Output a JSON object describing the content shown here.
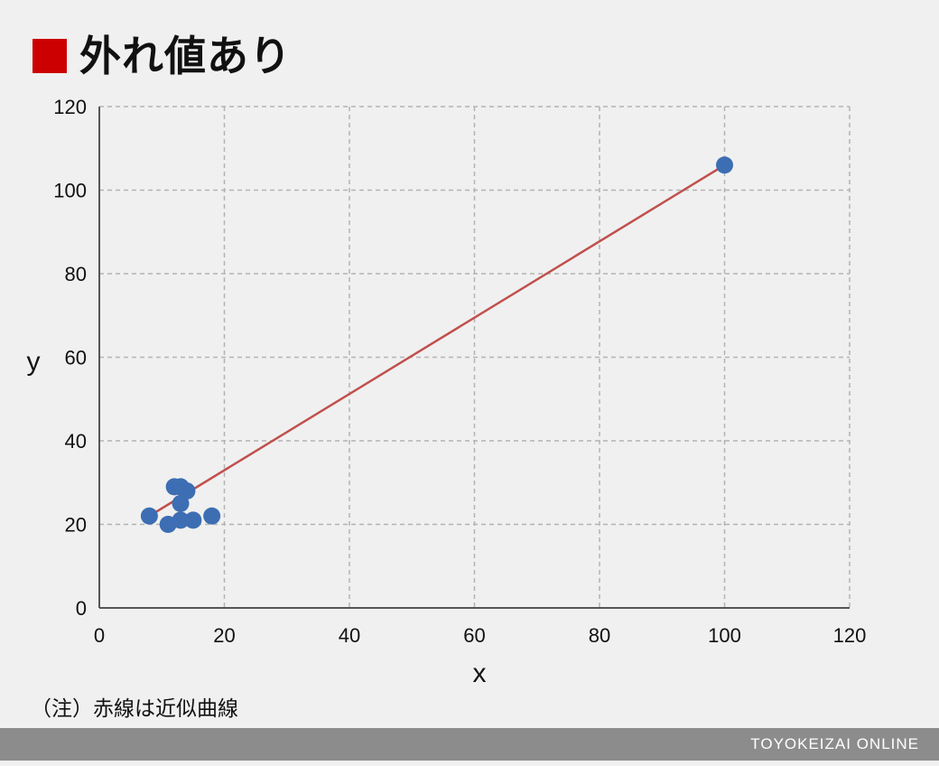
{
  "title": "外れ値あり",
  "note": "（注）赤線は近似曲線",
  "footer": "TOYOKEIZAI ONLINE",
  "colors": {
    "title_square": "#cc0000",
    "points": "#3d6eb3",
    "trendline": "#c0504d",
    "grid": "#b3b3b3",
    "axis": "#555555",
    "footer_bar": "#8c8c8c"
  },
  "chart_data": {
    "type": "scatter",
    "title": "外れ値あり",
    "xlabel": "x",
    "ylabel": "y",
    "xlim": [
      0,
      120
    ],
    "ylim": [
      0,
      120
    ],
    "xticks": [
      0,
      20,
      40,
      60,
      80,
      100,
      120
    ],
    "yticks": [
      0,
      20,
      40,
      60,
      80,
      100,
      120
    ],
    "grid": true,
    "legend": "none",
    "series": [
      {
        "points": [
          {
            "x": 8,
            "y": 22
          },
          {
            "x": 11,
            "y": 20
          },
          {
            "x": 12,
            "y": 29
          },
          {
            "x": 13,
            "y": 29
          },
          {
            "x": 13,
            "y": 25
          },
          {
            "x": 13,
            "y": 21
          },
          {
            "x": 14,
            "y": 28
          },
          {
            "x": 15,
            "y": 21
          },
          {
            "x": 18,
            "y": 22
          },
          {
            "x": 100,
            "y": 106
          }
        ]
      }
    ],
    "trendline": {
      "type": "linear",
      "from": {
        "x": 8,
        "y": 22
      },
      "to": {
        "x": 100,
        "y": 106
      }
    }
  }
}
